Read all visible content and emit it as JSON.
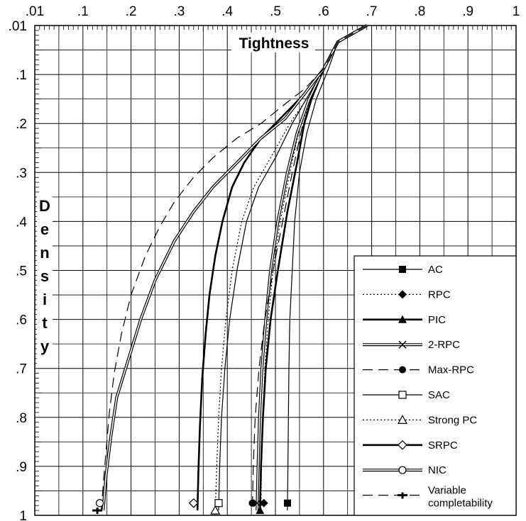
{
  "chart_data": {
    "type": "line",
    "title": "Tightness",
    "xlabel": "Tightness",
    "ylabel": "Density",
    "x_ticks": [
      ".01",
      ".1",
      ".2",
      ".3",
      ".4",
      ".5",
      ".6",
      ".7",
      ".8",
      ".9",
      "1"
    ],
    "y_ticks": [
      ".01",
      ".1",
      ".2",
      ".3",
      ".4",
      ".5",
      ".6",
      ".7",
      ".8",
      ".9",
      "1"
    ],
    "xlim": [
      0.01,
      1
    ],
    "ylim": [
      0.01,
      1
    ],
    "x_axis_position": "top",
    "y_axis_inverted": true,
    "grid": true,
    "legend_position": "bottom-right",
    "series": [
      {
        "name": "AC",
        "marker": "filled-square",
        "line": "thin-solid",
        "points": [
          [
            0.69,
            0.01
          ],
          [
            0.63,
            0.04
          ],
          [
            0.61,
            0.09
          ],
          [
            0.585,
            0.15
          ],
          [
            0.565,
            0.22
          ],
          [
            0.55,
            0.3
          ],
          [
            0.54,
            0.4
          ],
          [
            0.535,
            0.5
          ],
          [
            0.53,
            0.6
          ],
          [
            0.528,
            0.7
          ],
          [
            0.527,
            0.8
          ],
          [
            0.526,
            0.9
          ],
          [
            0.525,
            0.99
          ]
        ],
        "marker_point": [
          0.525,
          0.975
        ]
      },
      {
        "name": "RPC",
        "marker": "filled-diamond",
        "line": "dotted",
        "points": [
          [
            0.69,
            0.01
          ],
          [
            0.63,
            0.04
          ],
          [
            0.6,
            0.09
          ],
          [
            0.575,
            0.15
          ],
          [
            0.55,
            0.21
          ],
          [
            0.53,
            0.3
          ],
          [
            0.51,
            0.4
          ],
          [
            0.495,
            0.5
          ],
          [
            0.485,
            0.6
          ],
          [
            0.478,
            0.7
          ],
          [
            0.474,
            0.8
          ],
          [
            0.471,
            0.9
          ],
          [
            0.47,
            0.99
          ]
        ],
        "marker_point": [
          0.476,
          0.975
        ]
      },
      {
        "name": "PIC",
        "marker": "filled-triangle",
        "line": "thick-solid",
        "points": [
          [
            0.69,
            0.01
          ],
          [
            0.63,
            0.04
          ],
          [
            0.6,
            0.09
          ],
          [
            0.575,
            0.15
          ],
          [
            0.56,
            0.2
          ],
          [
            0.545,
            0.28
          ],
          [
            0.525,
            0.38
          ],
          [
            0.505,
            0.5
          ],
          [
            0.49,
            0.6
          ],
          [
            0.48,
            0.7
          ],
          [
            0.474,
            0.8
          ],
          [
            0.47,
            0.9
          ],
          [
            0.468,
            0.99
          ]
        ],
        "marker_point": [
          0.468,
          0.99
        ]
      },
      {
        "name": "2-RPC",
        "marker": "x-cross",
        "line": "double",
        "points": [
          [
            0.69,
            0.01
          ],
          [
            0.63,
            0.04
          ],
          [
            0.6,
            0.09
          ],
          [
            0.57,
            0.15
          ],
          [
            0.545,
            0.22
          ],
          [
            0.525,
            0.3
          ],
          [
            0.505,
            0.4
          ],
          [
            0.49,
            0.5
          ],
          [
            0.48,
            0.6
          ],
          [
            0.472,
            0.7
          ],
          [
            0.467,
            0.8
          ],
          [
            0.464,
            0.9
          ],
          [
            0.462,
            0.99
          ]
        ],
        "marker_point": [
          0.462,
          0.975
        ]
      },
      {
        "name": "Max-RPC",
        "marker": "filled-circle",
        "line": "long-dash",
        "points": [
          [
            0.69,
            0.01
          ],
          [
            0.63,
            0.04
          ],
          [
            0.6,
            0.09
          ],
          [
            0.575,
            0.15
          ],
          [
            0.555,
            0.21
          ],
          [
            0.535,
            0.3
          ],
          [
            0.515,
            0.4
          ],
          [
            0.495,
            0.5
          ],
          [
            0.478,
            0.6
          ],
          [
            0.466,
            0.7
          ],
          [
            0.458,
            0.8
          ],
          [
            0.454,
            0.9
          ],
          [
            0.452,
            0.99
          ]
        ],
        "marker_point": [
          0.452,
          0.975
        ]
      },
      {
        "name": "SAC",
        "marker": "open-square",
        "line": "thin-solid",
        "points": [
          [
            0.69,
            0.01
          ],
          [
            0.63,
            0.04
          ],
          [
            0.6,
            0.09
          ],
          [
            0.57,
            0.14
          ],
          [
            0.535,
            0.2
          ],
          [
            0.5,
            0.27
          ],
          [
            0.465,
            0.33
          ],
          [
            0.44,
            0.4
          ],
          [
            0.42,
            0.5
          ],
          [
            0.405,
            0.6
          ],
          [
            0.395,
            0.7
          ],
          [
            0.388,
            0.8
          ],
          [
            0.384,
            0.9
          ],
          [
            0.382,
            0.99
          ]
        ],
        "marker_point": [
          0.382,
          0.975
        ]
      },
      {
        "name": "Strong PC",
        "marker": "open-triangle",
        "line": "dotted",
        "points": [
          [
            0.69,
            0.01
          ],
          [
            0.63,
            0.04
          ],
          [
            0.6,
            0.09
          ],
          [
            0.565,
            0.15
          ],
          [
            0.53,
            0.2
          ],
          [
            0.49,
            0.27
          ],
          [
            0.455,
            0.33
          ],
          [
            0.43,
            0.4
          ],
          [
            0.41,
            0.5
          ],
          [
            0.397,
            0.6
          ],
          [
            0.388,
            0.7
          ],
          [
            0.382,
            0.8
          ],
          [
            0.378,
            0.9
          ],
          [
            0.375,
            0.99
          ]
        ],
        "marker_point": [
          0.375,
          0.99
        ]
      },
      {
        "name": "SRPC",
        "marker": "open-diamond",
        "line": "thick-solid",
        "points": [
          [
            0.69,
            0.01
          ],
          [
            0.63,
            0.04
          ],
          [
            0.6,
            0.09
          ],
          [
            0.56,
            0.14
          ],
          [
            0.52,
            0.18
          ],
          [
            0.47,
            0.23
          ],
          [
            0.435,
            0.28
          ],
          [
            0.41,
            0.33
          ],
          [
            0.39,
            0.4
          ],
          [
            0.375,
            0.47
          ],
          [
            0.363,
            0.55
          ],
          [
            0.355,
            0.63
          ],
          [
            0.348,
            0.72
          ],
          [
            0.343,
            0.82
          ],
          [
            0.34,
            0.91
          ],
          [
            0.338,
            0.99
          ]
        ],
        "marker_point": [
          0.33,
          0.975
        ]
      },
      {
        "name": "NIC",
        "marker": "open-circle",
        "line": "double",
        "points": [
          [
            0.69,
            0.01
          ],
          [
            0.63,
            0.04
          ],
          [
            0.6,
            0.09
          ],
          [
            0.56,
            0.14
          ],
          [
            0.52,
            0.19
          ],
          [
            0.47,
            0.23
          ],
          [
            0.42,
            0.28
          ],
          [
            0.37,
            0.33
          ],
          [
            0.33,
            0.38
          ],
          [
            0.29,
            0.44
          ],
          [
            0.25,
            0.52
          ],
          [
            0.22,
            0.6
          ],
          [
            0.195,
            0.68
          ],
          [
            0.17,
            0.76
          ],
          [
            0.158,
            0.84
          ],
          [
            0.148,
            0.92
          ],
          [
            0.142,
            0.99
          ]
        ],
        "marker_point": [
          0.135,
          0.975
        ]
      },
      {
        "name": "Variable completability",
        "marker": "dash-bar",
        "line": "long-dash",
        "points": [
          [
            0.69,
            0.01
          ],
          [
            0.63,
            0.04
          ],
          [
            0.6,
            0.09
          ],
          [
            0.56,
            0.13
          ],
          [
            0.52,
            0.16
          ],
          [
            0.47,
            0.2
          ],
          [
            0.42,
            0.23
          ],
          [
            0.37,
            0.27
          ],
          [
            0.33,
            0.31
          ],
          [
            0.29,
            0.36
          ],
          [
            0.26,
            0.41
          ],
          [
            0.23,
            0.47
          ],
          [
            0.2,
            0.55
          ],
          [
            0.18,
            0.63
          ],
          [
            0.165,
            0.71
          ],
          [
            0.155,
            0.79
          ],
          [
            0.148,
            0.87
          ],
          [
            0.142,
            0.94
          ],
          [
            0.138,
            0.99
          ]
        ],
        "marker_point": [
          0.13,
          0.99
        ]
      }
    ]
  }
}
